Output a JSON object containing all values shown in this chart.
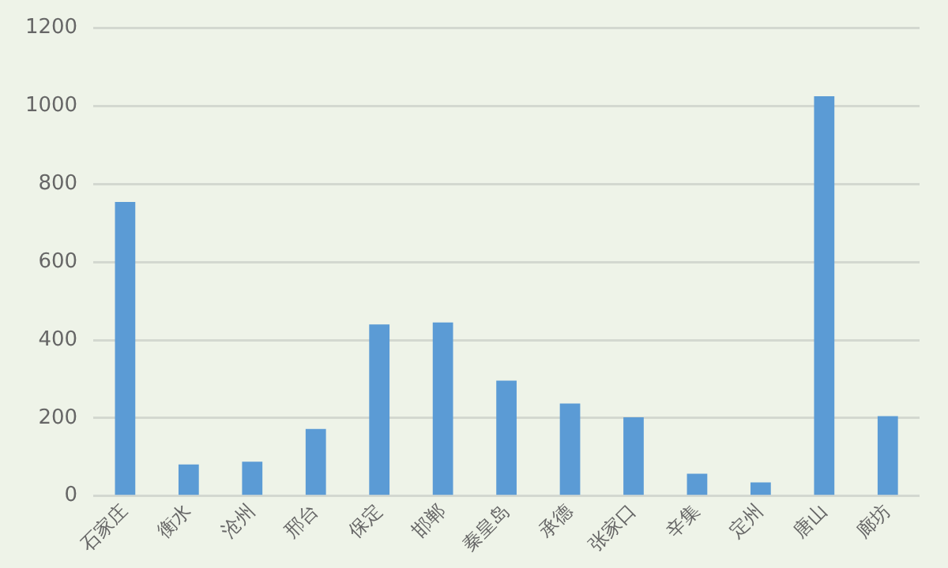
{
  "chart_data": {
    "type": "bar",
    "categories": [
      "石家庄",
      "衡水",
      "沧州",
      "邢台",
      "保定",
      "邯郸",
      "秦皇岛",
      "承德",
      "张家口",
      "辛集",
      "定州",
      "唐山",
      "廊坊"
    ],
    "values": [
      754,
      81,
      88,
      172,
      440,
      445,
      296,
      237,
      202,
      57,
      35,
      1025,
      205
    ],
    "color": "#5b9bd5",
    "ylim": [
      0,
      1200
    ],
    "yticks": [
      0,
      200,
      400,
      600,
      800,
      1000,
      1200
    ],
    "grid": "y"
  }
}
